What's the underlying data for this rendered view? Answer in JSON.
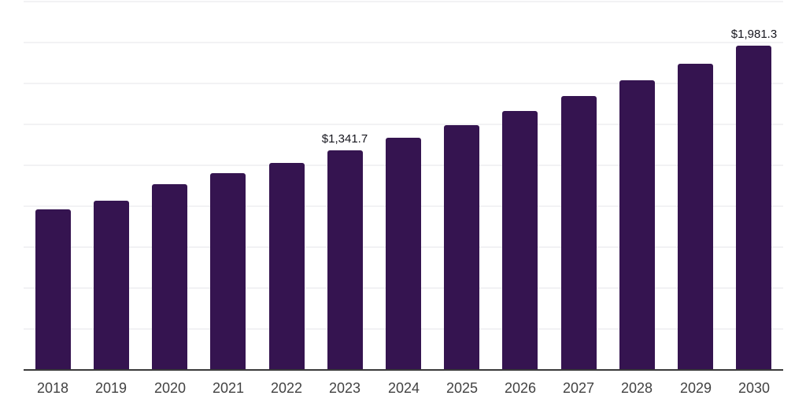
{
  "chart_data": {
    "type": "bar",
    "title": "",
    "xlabel": "",
    "ylabel": "",
    "categories": [
      "2018",
      "2019",
      "2020",
      "2021",
      "2022",
      "2023",
      "2024",
      "2025",
      "2026",
      "2027",
      "2028",
      "2029",
      "2030"
    ],
    "values": [
      980,
      1035,
      1133,
      1201,
      1265,
      1341.7,
      1418,
      1497,
      1582,
      1672,
      1770,
      1872,
      1981.3
    ],
    "data_labels": [
      {
        "index": 5,
        "text": "$1,341.7"
      },
      {
        "index": 12,
        "text": "$1,981.3"
      }
    ],
    "ylim": [
      0,
      2250
    ],
    "gridline_interval": 250,
    "grid": "horizontal",
    "y_axis_tick_labels": "none",
    "legend": "none",
    "colors": {
      "bar": "#351450",
      "gridline": "#f2f2f4",
      "axis_line": "#3a3a3a",
      "tick_label": "#424242",
      "data_label": "#16161e",
      "background": "#ffffff"
    }
  }
}
